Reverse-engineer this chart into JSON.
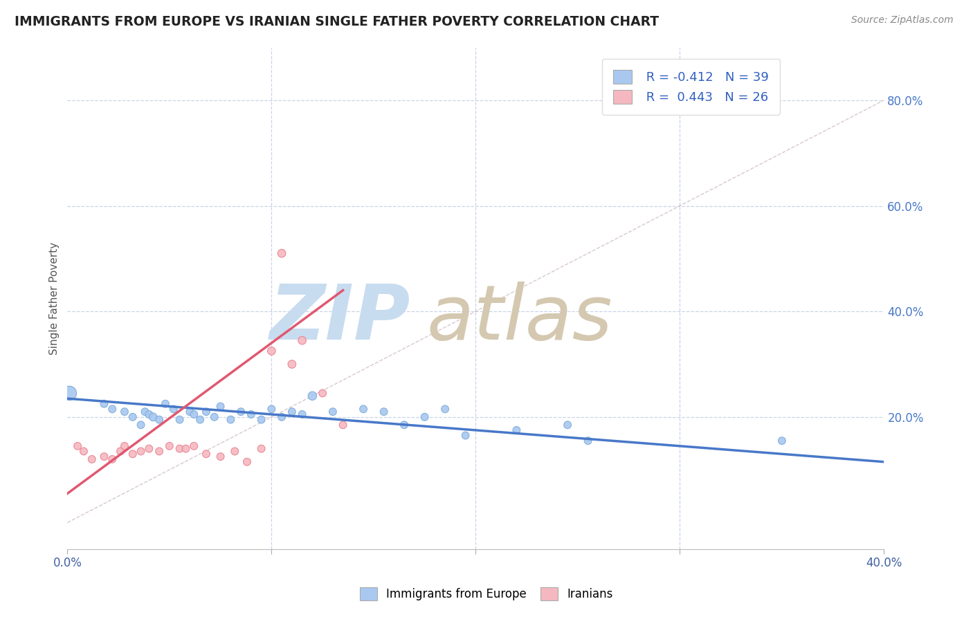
{
  "title": "IMMIGRANTS FROM EUROPE VS IRANIAN SINGLE FATHER POVERTY CORRELATION CHART",
  "source": "Source: ZipAtlas.com",
  "ylabel": "Single Father Poverty",
  "x_label_legend": "Immigrants from Europe",
  "y_label_legend": "Iranians",
  "legend_r1": "R = -0.412",
  "legend_n1": "N = 39",
  "legend_r2": "R =  0.443",
  "legend_n2": "N = 26",
  "xlim": [
    0.0,
    0.4
  ],
  "ylim": [
    -0.05,
    0.9
  ],
  "xtick_vals": [
    0.0,
    0.1,
    0.2,
    0.3,
    0.4
  ],
  "xtick_labels_show": [
    "0.0%",
    "",
    "",
    "",
    "40.0%"
  ],
  "ytick_vals_right": [
    0.2,
    0.4,
    0.6,
    0.8
  ],
  "ytick_labels_right": [
    "20.0%",
    "40.0%",
    "60.0%",
    "80.0%"
  ],
  "blue_color": "#A8C8F0",
  "blue_edge_color": "#7AAAD8",
  "pink_color": "#F5B8C0",
  "pink_edge_color": "#E88090",
  "blue_line_color": "#4878C8",
  "pink_line_color": "#E05870",
  "diag_line_color": "#C8B0B8",
  "watermark_zip_color": "#C8DCF0",
  "watermark_atlas_color": "#D4C8B0",
  "background_color": "#FFFFFF",
  "grid_color": "#C8D4E8",
  "blue_scatter_x": [
    0.001,
    0.018,
    0.022,
    0.028,
    0.032,
    0.036,
    0.038,
    0.04,
    0.042,
    0.045,
    0.048,
    0.052,
    0.055,
    0.06,
    0.062,
    0.065,
    0.068,
    0.072,
    0.075,
    0.08,
    0.085,
    0.09,
    0.095,
    0.1,
    0.105,
    0.11,
    0.115,
    0.12,
    0.13,
    0.145,
    0.155,
    0.165,
    0.175,
    0.185,
    0.195,
    0.22,
    0.245,
    0.255,
    0.35
  ],
  "blue_scatter_y": [
    0.245,
    0.225,
    0.215,
    0.21,
    0.2,
    0.185,
    0.21,
    0.205,
    0.2,
    0.195,
    0.225,
    0.215,
    0.195,
    0.21,
    0.205,
    0.195,
    0.21,
    0.2,
    0.22,
    0.195,
    0.21,
    0.205,
    0.195,
    0.215,
    0.2,
    0.21,
    0.205,
    0.24,
    0.21,
    0.215,
    0.21,
    0.185,
    0.2,
    0.215,
    0.165,
    0.175,
    0.185,
    0.155,
    0.155
  ],
  "blue_scatter_size": [
    220,
    60,
    60,
    60,
    60,
    60,
    60,
    60,
    70,
    60,
    60,
    60,
    60,
    60,
    60,
    60,
    60,
    60,
    60,
    60,
    60,
    60,
    60,
    60,
    60,
    60,
    60,
    80,
    60,
    60,
    60,
    60,
    60,
    60,
    60,
    60,
    60,
    60,
    60
  ],
  "pink_scatter_x": [
    0.005,
    0.008,
    0.012,
    0.018,
    0.022,
    0.026,
    0.028,
    0.032,
    0.036,
    0.04,
    0.045,
    0.05,
    0.055,
    0.058,
    0.062,
    0.068,
    0.075,
    0.082,
    0.088,
    0.095,
    0.1,
    0.105,
    0.11,
    0.115,
    0.125,
    0.135
  ],
  "pink_scatter_y": [
    0.145,
    0.135,
    0.12,
    0.125,
    0.12,
    0.135,
    0.145,
    0.13,
    0.135,
    0.14,
    0.135,
    0.145,
    0.14,
    0.14,
    0.145,
    0.13,
    0.125,
    0.135,
    0.115,
    0.14,
    0.325,
    0.51,
    0.3,
    0.345,
    0.245,
    0.185
  ],
  "pink_scatter_size": [
    60,
    60,
    60,
    60,
    60,
    60,
    60,
    60,
    60,
    60,
    60,
    60,
    60,
    60,
    60,
    60,
    60,
    60,
    60,
    60,
    70,
    70,
    70,
    70,
    60,
    60
  ],
  "blue_trend_x": [
    0.0,
    0.4
  ],
  "blue_trend_y": [
    0.235,
    0.115
  ],
  "pink_trend_x": [
    0.0,
    0.135
  ],
  "pink_trend_y": [
    0.055,
    0.44
  ],
  "diag_line_x": [
    0.0,
    0.4
  ],
  "diag_line_y": [
    0.0,
    0.8
  ]
}
